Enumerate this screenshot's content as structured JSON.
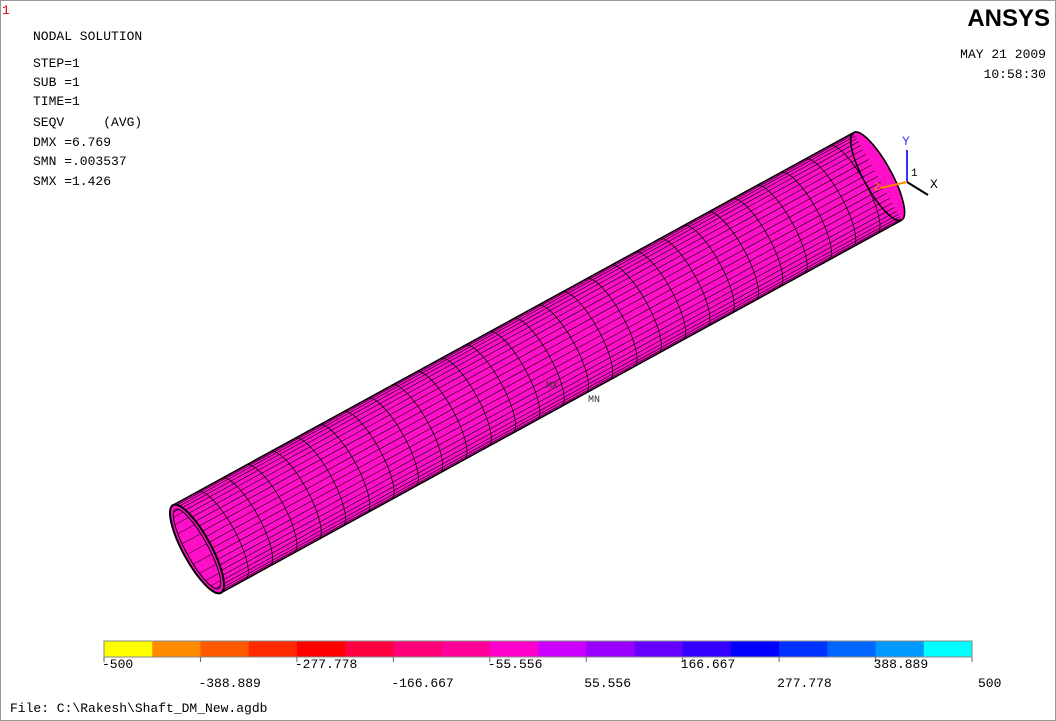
{
  "window_number": "1",
  "header": {
    "title": "NODAL SOLUTION",
    "logo": "ANSYS",
    "date": "MAY 21 2009",
    "time": "10:58:30"
  },
  "info": {
    "lines": [
      "STEP=1",
      "SUB =1",
      "TIME=1",
      "SEQV     (AVG)",
      "DMX =6.769",
      "SMN =.003537",
      "SMX =1.426"
    ]
  },
  "triad": {
    "y_label": "Y",
    "x_label": "X",
    "z_label": "Z",
    "id": "1"
  },
  "markers": {
    "max": "MX",
    "min": "MN"
  },
  "legend": {
    "colors": [
      "#ffff00",
      "#ff8c00",
      "#ff5a00",
      "#ff2a00",
      "#ff0000",
      "#ff0040",
      "#ff0078",
      "#ff0099",
      "#ff00cc",
      "#cc00ff",
      "#9900ff",
      "#6600ff",
      "#3300ff",
      "#0000ff",
      "#0033ff",
      "#0066ff",
      "#0099ff",
      "#00ffff"
    ],
    "labels": [
      "-500",
      "-388.889",
      "-277.778",
      "-166.667",
      "-55.556",
      "55.556",
      "166.667",
      "277.778",
      "388.889",
      "500"
    ]
  },
  "footer": {
    "file": "File: C:\\Rakesh\\Shaft_DM_New.agdb"
  }
}
